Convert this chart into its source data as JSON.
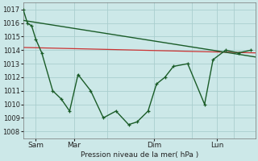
{
  "background_color": "#cce8e8",
  "grid_color": "#aacece",
  "line_color": "#1a5c28",
  "red_line_color": "#cc3333",
  "xlabel": "Pression niveau de la mer( hPa )",
  "ylim": [
    1007.5,
    1017.5
  ],
  "yticks": [
    1008,
    1009,
    1010,
    1011,
    1012,
    1013,
    1014,
    1015,
    1016,
    1017
  ],
  "x_tick_labels": [
    "Sam",
    "Mar",
    "Dim",
    "Lun"
  ],
  "x_tick_positions": [
    15,
    60,
    155,
    230
  ],
  "x_vline_positions": [
    15,
    60,
    155,
    230
  ],
  "xlim": [
    0,
    275
  ],
  "series1_x": [
    0,
    5,
    10,
    15,
    22,
    35,
    45,
    55,
    65,
    80,
    95,
    110,
    125,
    135,
    148,
    158,
    168,
    178,
    195,
    215,
    225,
    240,
    255,
    270
  ],
  "series1_y": [
    1017.0,
    1016.0,
    1015.8,
    1014.8,
    1013.8,
    1011.0,
    1010.4,
    1009.5,
    1012.2,
    1011.0,
    1009.0,
    1009.5,
    1008.5,
    1008.7,
    1009.5,
    1011.5,
    1012.0,
    1012.8,
    1013.0,
    1010.0,
    1013.3,
    1014.0,
    1013.8,
    1014.0
  ],
  "series2_x": [
    0,
    275
  ],
  "series2_y": [
    1016.2,
    1013.5
  ],
  "red_line_x": [
    0,
    275
  ],
  "red_line_y": [
    1014.2,
    1013.8
  ]
}
